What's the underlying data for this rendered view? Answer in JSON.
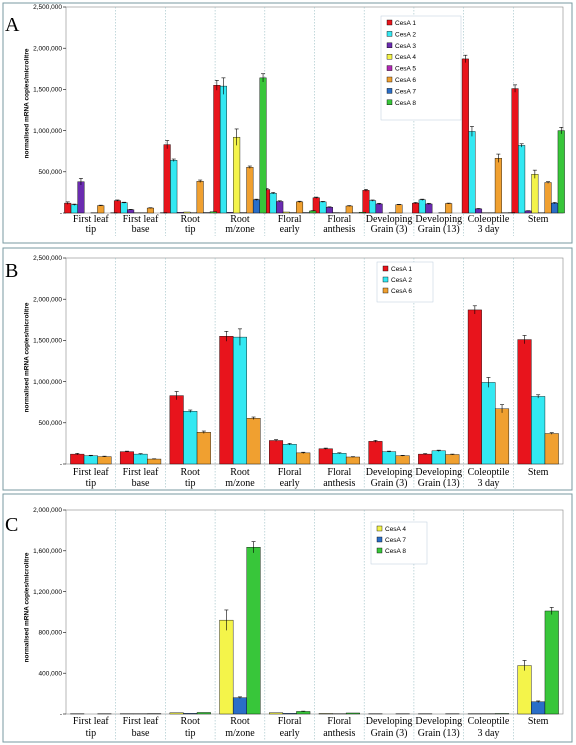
{
  "chart_data": [
    {
      "panel": "A",
      "type": "bar",
      "ylabel": "normalised mRNA copies/microlitre",
      "ylim": [
        0,
        2500000
      ],
      "yticks": [
        "-",
        "500,000",
        "1,000,000",
        "1,500,000",
        "2,000,000",
        "2,500,000"
      ],
      "categories": [
        "First leaf tip",
        "First leaf base",
        "Root tip",
        "Root m/zone",
        "Floral early",
        "Floral anthesis",
        "Developing Grain (3)",
        "Developing Grain (13)",
        "Coleoptile 3 day",
        "Stem"
      ],
      "category_lines": [
        [
          "First leaf",
          "tip"
        ],
        [
          "First leaf",
          "base"
        ],
        [
          "Root",
          "tip"
        ],
        [
          "Root",
          "m/zone"
        ],
        [
          "Floral",
          "early"
        ],
        [
          "Floral",
          "anthesis"
        ],
        [
          "Developing",
          "Grain (3)"
        ],
        [
          "Developing",
          "Grain (13)"
        ],
        [
          "Coleoptile",
          "3 day"
        ],
        [
          "Stem",
          ""
        ]
      ],
      "legend_position": "top-right",
      "series": [
        {
          "name": "CesA 1",
          "color": "#e8141c",
          "values": [
            120000,
            150000,
            830000,
            1550000,
            285000,
            185000,
            275000,
            120000,
            1870000,
            1510000
          ],
          "errors": [
            15000,
            8000,
            50000,
            60000,
            10000,
            8000,
            12000,
            8000,
            45000,
            45000
          ]
        },
        {
          "name": "CesA 2",
          "color": "#33e8f2",
          "values": [
            100000,
            125000,
            640000,
            1540000,
            240000,
            135000,
            150000,
            160000,
            990000,
            820000
          ],
          "errors": [
            8000,
            6000,
            15000,
            100000,
            10000,
            6000,
            8000,
            8000,
            60000,
            20000
          ]
        },
        {
          "name": "CesA 3",
          "color": "#6a2bb0",
          "values": [
            380000,
            40000,
            8000,
            8000,
            140000,
            70000,
            110000,
            110000,
            50000,
            25000
          ],
          "errors": [
            40000,
            4000,
            1000,
            1000,
            8000,
            5000,
            8000,
            8000,
            5000,
            3000
          ]
        },
        {
          "name": "CesA 4",
          "color": "#f4f44a",
          "values": [
            2000,
            3000,
            12000,
            920000,
            12000,
            5000,
            2000,
            2000,
            3000,
            470000
          ],
          "errors": [
            500,
            500,
            2000,
            100000,
            2000,
            1000,
            500,
            500,
            500,
            50000
          ]
        },
        {
          "name": "CesA 5",
          "color": "#b128b4",
          "values": [
            3000,
            3000,
            4000,
            5000,
            5000,
            3000,
            4000,
            3000,
            3000,
            3000
          ],
          "errors": [
            500,
            500,
            500,
            500,
            500,
            500,
            500,
            500,
            500,
            500
          ]
        },
        {
          "name": "CesA 6",
          "color": "#f0a030",
          "values": [
            90000,
            60000,
            385000,
            555000,
            135000,
            85000,
            100000,
            115000,
            665000,
            370000
          ],
          "errors": [
            5000,
            4000,
            15000,
            15000,
            8000,
            5000,
            5000,
            5000,
            50000,
            10000
          ]
        },
        {
          "name": "CesA 7",
          "color": "#2a6ec8",
          "values": [
            1000,
            2000,
            6000,
            160000,
            6000,
            3000,
            1000,
            1000,
            3000,
            120000
          ],
          "errors": [
            300,
            300,
            800,
            8000,
            800,
            500,
            300,
            300,
            500,
            8000
          ]
        },
        {
          "name": "CesA 8",
          "color": "#38c63a",
          "values": [
            3000,
            4000,
            15000,
            1640000,
            25000,
            10000,
            2000,
            2000,
            5000,
            1000000
          ],
          "errors": [
            500,
            500,
            2000,
            50000,
            3000,
            1000,
            500,
            500,
            800,
            40000
          ]
        }
      ]
    },
    {
      "panel": "B",
      "type": "bar",
      "ylabel": "normalised mRNA copies/microlitre",
      "ylim": [
        0,
        2500000
      ],
      "yticks": [
        "-",
        "500,000",
        "1,000,000",
        "1,500,000",
        "2,000,000",
        "2,500,000"
      ],
      "categories": [
        "First leaf tip",
        "First leaf base",
        "Root tip",
        "Root m/zone",
        "Floral early",
        "Floral anthesis",
        "Developing Grain (3)",
        "Developing Grain (13)",
        "Coleoptile 3 day",
        "Stem"
      ],
      "category_lines": [
        [
          "First leaf",
          "tip"
        ],
        [
          "First leaf",
          "base"
        ],
        [
          "Root",
          "tip"
        ],
        [
          "Root",
          "m/zone"
        ],
        [
          "Floral",
          "early"
        ],
        [
          "Floral",
          "anthesis"
        ],
        [
          "Developing",
          "Grain (3)"
        ],
        [
          "Developing",
          "Grain (13)"
        ],
        [
          "Coleoptile",
          "3 day"
        ],
        [
          "Stem",
          ""
        ]
      ],
      "legend_position": "top-right",
      "series": [
        {
          "name": "CesA 1",
          "color": "#e8141c",
          "values": [
            120000,
            150000,
            830000,
            1550000,
            285000,
            185000,
            275000,
            120000,
            1870000,
            1510000
          ],
          "errors": [
            10000,
            6000,
            50000,
            60000,
            10000,
            8000,
            12000,
            6000,
            50000,
            50000
          ]
        },
        {
          "name": "CesA 2",
          "color": "#33e8f2",
          "values": [
            100000,
            120000,
            640000,
            1540000,
            240000,
            130000,
            150000,
            160000,
            990000,
            820000
          ],
          "errors": [
            6000,
            6000,
            15000,
            100000,
            10000,
            6000,
            6000,
            8000,
            60000,
            20000
          ]
        },
        {
          "name": "CesA 6",
          "color": "#f0a030",
          "values": [
            90000,
            60000,
            385000,
            555000,
            135000,
            85000,
            100000,
            115000,
            670000,
            370000
          ],
          "errors": [
            5000,
            3000,
            15000,
            15000,
            8000,
            4000,
            5000,
            5000,
            50000,
            10000
          ]
        }
      ]
    },
    {
      "panel": "C",
      "type": "bar",
      "ylabel": "normalised mRNA copies/microlitre",
      "ylim": [
        0,
        2000000
      ],
      "yticks": [
        "-",
        "400,000",
        "800,000",
        "1,200,000",
        "1,600,000",
        "2,000,000"
      ],
      "categories": [
        "First leaf tip",
        "First leaf base",
        "Root tip",
        "Root m/zone",
        "Floral early",
        "Floral anthesis",
        "Developing Grain (3)",
        "Developing Grain (13)",
        "Coleoptile 3 day",
        "Stem"
      ],
      "category_lines": [
        [
          "First leaf",
          "tip"
        ],
        [
          "First leaf",
          "base"
        ],
        [
          "Root",
          "tip"
        ],
        [
          "Root",
          "m/zone"
        ],
        [
          "Floral",
          "early"
        ],
        [
          "Floral",
          "anthesis"
        ],
        [
          "Developing",
          "Grain (3)"
        ],
        [
          "Developing",
          "Grain (13)"
        ],
        [
          "Coleoptile",
          "3 day"
        ],
        [
          "Stem",
          ""
        ]
      ],
      "legend_position": "top-right",
      "series": [
        {
          "name": "CesA 4",
          "color": "#f4f44a",
          "values": [
            2000,
            3000,
            12000,
            920000,
            12000,
            5000,
            2000,
            2000,
            3000,
            475000
          ],
          "errors": [
            500,
            500,
            2000,
            100000,
            2000,
            1000,
            500,
            500,
            500,
            50000
          ]
        },
        {
          "name": "CesA 7",
          "color": "#2a6ec8",
          "values": [
            1000,
            2000,
            6000,
            160000,
            6000,
            3000,
            1000,
            1000,
            3000,
            120000
          ],
          "errors": [
            300,
            300,
            800,
            8000,
            800,
            500,
            300,
            300,
            500,
            8000
          ]
        },
        {
          "name": "CesA 8",
          "color": "#38c63a",
          "values": [
            3000,
            4000,
            15000,
            1635000,
            25000,
            10000,
            2000,
            2000,
            5000,
            1010000
          ],
          "errors": [
            500,
            500,
            2000,
            55000,
            3000,
            1000,
            500,
            500,
            800,
            35000
          ]
        }
      ]
    }
  ]
}
